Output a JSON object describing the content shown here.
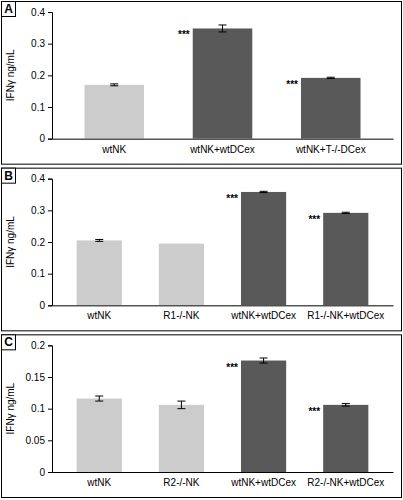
{
  "chart_data": [
    {
      "type": "bar",
      "title": "A",
      "y_label": "IFNγ ng/mL",
      "categories": [
        "wtNK",
        "wtNK+wtDCex",
        "wtNK+T-/-DCex"
      ],
      "values": [
        0.17,
        0.348,
        0.192
      ],
      "errors": [
        0.003,
        0.011,
        0.002
      ],
      "significance": [
        null,
        "***",
        "***"
      ],
      "colors": [
        "#cccccc",
        "#595959",
        "#595959"
      ],
      "ylim": [
        0,
        0.4
      ],
      "yticks": [
        0,
        0.1,
        0.2,
        0.3,
        0.4
      ],
      "grid": false
    },
    {
      "type": "bar",
      "title": "B",
      "y_label": "IFNγ ng/mL",
      "categories": [
        "wtNK",
        "R1-/-NK",
        "wtNK+wtDCex",
        "R1-/-NK+wtDCex"
      ],
      "values": [
        0.205,
        0.195,
        0.358,
        0.292
      ],
      "errors": [
        0.003,
        null,
        0.002,
        0.002
      ],
      "significance": [
        null,
        null,
        "***",
        "***"
      ],
      "colors": [
        "#cccccc",
        "#cccccc",
        "#595959",
        "#595959"
      ],
      "ylim": [
        0,
        0.4
      ],
      "yticks": [
        0,
        0.1,
        0.2,
        0.3,
        0.4
      ],
      "grid": false
    },
    {
      "type": "bar",
      "title": "C",
      "y_label": "IFNγ ng/mL",
      "categories": [
        "wtNK",
        "R2-/-NK",
        "wtNK+wtDCex",
        "R2-/-NK+wtDCex"
      ],
      "values": [
        0.116,
        0.106,
        0.176,
        0.106
      ],
      "errors": [
        0.004,
        0.006,
        0.004,
        0.002
      ],
      "significance": [
        null,
        null,
        "***",
        "***"
      ],
      "colors": [
        "#cccccc",
        "#cccccc",
        "#595959",
        "#595959"
      ],
      "ylim": [
        0,
        0.2
      ],
      "yticks": [
        0,
        0.05,
        0.1,
        0.15,
        0.2
      ],
      "grid": false
    }
  ]
}
